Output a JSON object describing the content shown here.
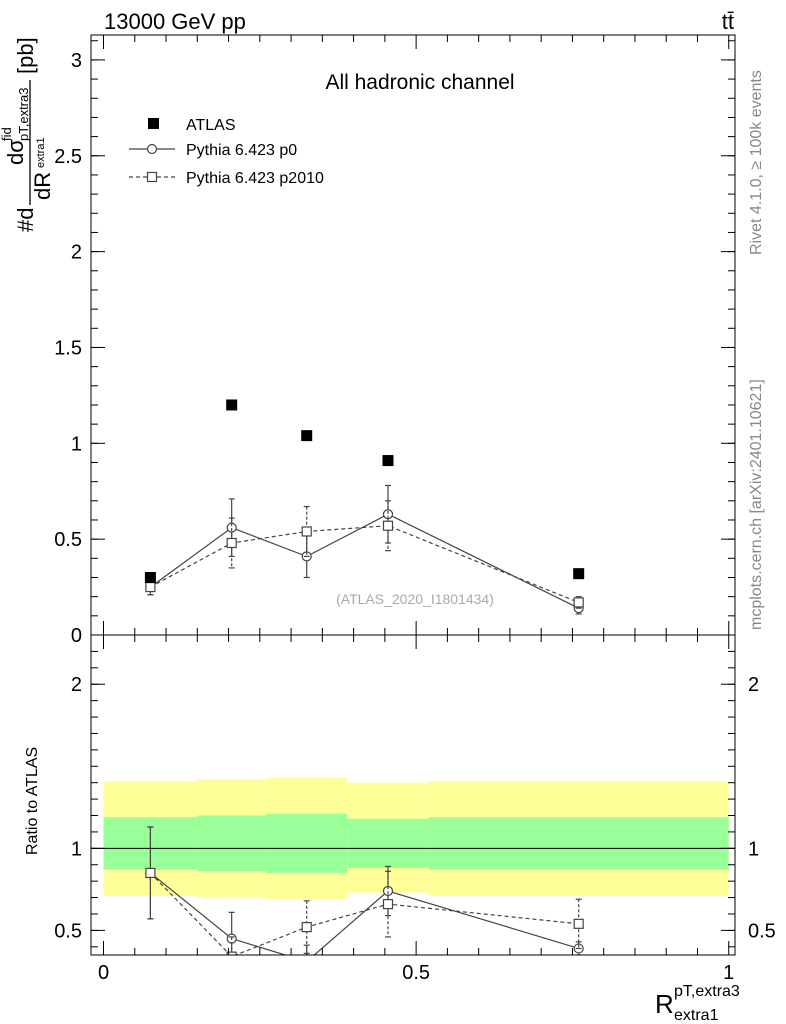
{
  "header": {
    "left": "13000 GeV pp",
    "right": "tt̄"
  },
  "side_text": {
    "rivet": "Rivet 4.1.0, ≥ 100k events",
    "mcplots": "mcplots.cern.ch [arXiv:2401.10621]"
  },
  "colors": {
    "atlas": "#000000",
    "mc": "#444444",
    "band_outer": "#ffff99",
    "band_inner": "#99ff99"
  },
  "chart_data": [
    {
      "type": "scatter",
      "title": "All hadronic channel",
      "analysis_tag": "(ATLAS_2020_I1801434)",
      "ylabel": "#d dσ^fid_{pT,extra3} / dR_{extra1} [pb]",
      "ylabel_parts": {
        "prefix": "#d",
        "num": "dσ",
        "num_sup": "fid",
        "num_sub": "pT,extra3",
        "den": "dR",
        "den_sub": "extra1",
        "unit": "[pb]"
      },
      "xlim": [
        -0.02,
        1.01
      ],
      "ylim": [
        0,
        3.13
      ],
      "yticks": [
        0,
        0.5,
        1,
        1.5,
        2,
        2.5,
        3
      ],
      "ytick_labels": [
        "0",
        "0.5",
        "1",
        "1.5",
        "2",
        "2.5",
        "3"
      ],
      "legend": {
        "position": "top-left",
        "entries": [
          "ATLAS",
          "Pythia 6.423 p0",
          "Pythia 6.423 p2010"
        ]
      },
      "bin_edges": [
        0.0,
        0.15,
        0.26,
        0.39,
        0.52,
        1.0
      ],
      "series": [
        {
          "name": "ATLAS",
          "marker": "filled-square",
          "line": "none",
          "x": [
            0.075,
            0.205,
            0.325,
            0.455,
            0.76
          ],
          "y": [
            0.3,
            1.2,
            1.04,
            0.91,
            0.32
          ]
        },
        {
          "name": "Pythia 6.423 p0",
          "marker": "open-circle",
          "line": "solid",
          "x": [
            0.075,
            0.205,
            0.325,
            0.455,
            0.76
          ],
          "y": [
            0.25,
            0.56,
            0.41,
            0.63,
            0.14
          ],
          "yerr": [
            0.04,
            0.15,
            0.11,
            0.15,
            0.03
          ]
        },
        {
          "name": "Pythia 6.423 p2010",
          "marker": "open-square",
          "line": "dashed",
          "x": [
            0.075,
            0.205,
            0.325,
            0.455,
            0.76
          ],
          "y": [
            0.25,
            0.48,
            0.54,
            0.57,
            0.17
          ],
          "yerr": [
            0.04,
            0.13,
            0.13,
            0.13,
            0.03
          ]
        }
      ]
    },
    {
      "type": "scatter",
      "ylabel": "Ratio to ATLAS",
      "xlabel": "R^{pT,extra3}_{extra1}",
      "xlabel_parts": {
        "main": "R",
        "sup": "pT,extra3",
        "sub": "extra1"
      },
      "xlim": [
        -0.02,
        1.01
      ],
      "ylim": [
        0.35,
        2.3
      ],
      "xticks": [
        0,
        0.5,
        1
      ],
      "xtick_labels": [
        "0",
        "0.5",
        "1"
      ],
      "yticks": [
        0.5,
        1,
        2
      ],
      "ytick_labels": [
        "0.5",
        "1",
        "2"
      ],
      "reference_line": 1,
      "uncertainty_bands": [
        {
          "x0": 0.0,
          "x1": 0.15,
          "outer": [
            0.71,
            1.41
          ],
          "inner": [
            0.87,
            1.19
          ]
        },
        {
          "x0": 0.15,
          "x1": 0.26,
          "outer": [
            0.7,
            1.42
          ],
          "inner": [
            0.86,
            1.2
          ]
        },
        {
          "x0": 0.26,
          "x1": 0.39,
          "outer": [
            0.69,
            1.43
          ],
          "inner": [
            0.85,
            1.21
          ]
        },
        {
          "x0": 0.39,
          "x1": 0.52,
          "outer": [
            0.73,
            1.4
          ],
          "inner": [
            0.88,
            1.18
          ]
        },
        {
          "x0": 0.52,
          "x1": 1.0,
          "outer": [
            0.71,
            1.41
          ],
          "inner": [
            0.87,
            1.19
          ]
        }
      ],
      "series": [
        {
          "name": "Pythia 6.423 p0",
          "marker": "open-circle",
          "line": "solid",
          "x": [
            0.075,
            0.205,
            0.325,
            0.455,
            0.76
          ],
          "y": [
            0.85,
            0.45,
            0.31,
            0.74,
            0.39
          ],
          "yerr": [
            0.28,
            0.16,
            0.1,
            0.15,
            0.04
          ]
        },
        {
          "name": "Pythia 6.423 p2010",
          "marker": "open-square",
          "line": "dashed",
          "x": [
            0.075,
            0.205,
            0.325,
            0.455,
            0.76
          ],
          "y": [
            0.85,
            0.34,
            0.52,
            0.66,
            0.54
          ],
          "yerr": [
            0.28,
            0.12,
            0.16,
            0.2,
            0.15
          ]
        }
      ]
    }
  ]
}
